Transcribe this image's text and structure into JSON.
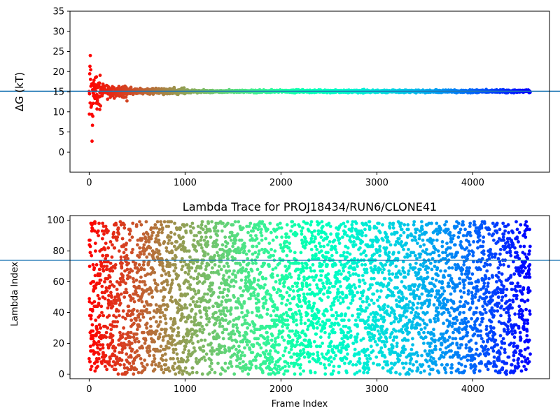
{
  "chart_data": [
    {
      "type": "scatter",
      "title": "",
      "xlabel": "",
      "ylabel": "ΔG (kT)",
      "xlim": [
        -200,
        4800
      ],
      "ylim": [
        -5,
        35
      ],
      "xticks": [
        0,
        1000,
        2000,
        3000,
        4000
      ],
      "yticks": [
        0,
        5,
        10,
        15,
        20,
        25,
        30,
        35
      ],
      "xtick_labels": [
        "0",
        "1000",
        "2000",
        "3000",
        "4000"
      ],
      "ytick_labels": [
        "0",
        "5",
        "10",
        "15",
        "20",
        "25",
        "30",
        "35"
      ],
      "reference_line": {
        "y": 15.1,
        "color": "#1f77b4"
      },
      "n_frames": 4600,
      "colormap": "rainbow (red at frame 0 → violet at last frame)",
      "series_summary": {
        "early_spread": "values spread roughly 0–30 for frames 0–100",
        "converged_value": 15.1
      }
    },
    {
      "type": "scatter",
      "title": "Lambda Trace for PROJ18434/RUN6/CLONE41",
      "xlabel": "Frame Index",
      "ylabel": "Lambda Index",
      "xlim": [
        -200,
        4800
      ],
      "ylim": [
        -3,
        103
      ],
      "xticks": [
        0,
        1000,
        2000,
        3000,
        4000
      ],
      "yticks": [
        0,
        20,
        40,
        60,
        80,
        100
      ],
      "xtick_labels": [
        "0",
        "1000",
        "2000",
        "3000",
        "4000"
      ],
      "ytick_labels": [
        "0",
        "20",
        "40",
        "60",
        "80",
        "100"
      ],
      "reference_line": {
        "y": 74,
        "color": "#1f77b4"
      },
      "n_frames": 4600,
      "colormap": "rainbow (red at frame 0 → violet at last frame)",
      "series_summary": {
        "lambda_range": [
          0,
          99
        ],
        "distribution": "lambda index values spread uniformly between 0 and 99 across all frames"
      }
    }
  ]
}
